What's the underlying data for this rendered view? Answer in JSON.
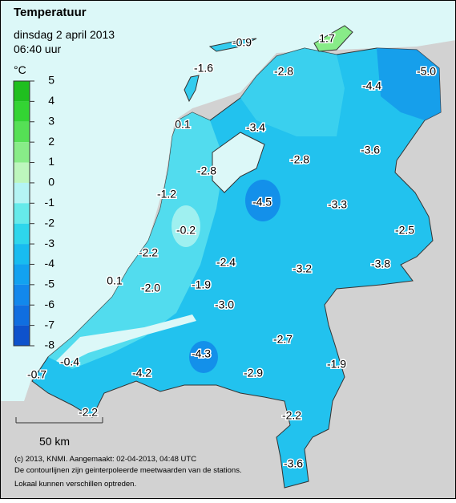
{
  "header": {
    "title": "Temperatuur",
    "date": "dinsdag 2 april 2013",
    "time": "06:40 uur"
  },
  "legend": {
    "unit": "°C",
    "ticks": [
      5,
      4,
      3,
      2,
      1,
      0,
      -1,
      -2,
      -3,
      -4,
      -5,
      -6,
      -7,
      -8
    ],
    "colors": [
      "#1fbf1f",
      "#33d433",
      "#55e055",
      "#88ec88",
      "#bdf6bd",
      "#b4f4f4",
      "#66eaea",
      "#2ed6ec",
      "#18bcf0",
      "#12a2f0",
      "#1288ec",
      "#106ee0",
      "#0e52cc"
    ]
  },
  "stations": [
    "-0.9",
    "1.7",
    "-1.6",
    "-2.8",
    "-4.4",
    "-5.0",
    "0.1",
    "-3.4",
    "-3.6",
    "-2.8",
    "-2.8",
    "-1.2",
    "-4.5",
    "-3.3",
    "-2.5",
    "-0.2",
    "-2.2",
    "-2.4",
    "-3.2",
    "-3.8",
    "0.1",
    "-2.0",
    "-1.9",
    "-3.0",
    "-2.7",
    "-4.3",
    "-1.9",
    "-0.4",
    "-0.7",
    "-4.2",
    "-2.9",
    "-2.2",
    "-2.2",
    "-3.6"
  ],
  "scale_bar": "50 km",
  "footer": [
    "(c) 2013, KNMI. Aangemaakt: 02-04-2013, 04:48 UTC",
    "De contourlijnen zijn geinterpoleerde meetwaarden van de stations.",
    "Lokaal kunnen verschillen optreden."
  ]
}
